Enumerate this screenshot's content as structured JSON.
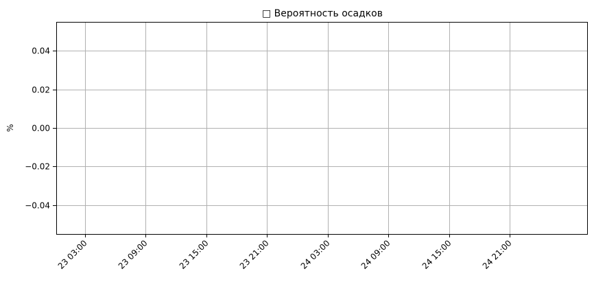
{
  "chart_data": {
    "type": "line",
    "title": "□ Вероятность осадков",
    "xlabel": "",
    "ylabel": "%",
    "x_ticks": [
      "23 03:00",
      "23 09:00",
      "23 15:00",
      "23 21:00",
      "24 03:00",
      "24 09:00",
      "24 15:00",
      "24 21:00"
    ],
    "y_ticks": [
      0.04,
      0.02,
      0.0,
      -0.02,
      -0.04
    ],
    "y_tick_labels": [
      "0.04",
      "0.02",
      "0.00",
      "−0.02",
      "−0.04"
    ],
    "ylim": [
      -0.055,
      0.055
    ],
    "series": [],
    "grid": true,
    "colors": {
      "grid": "#b0b0b0",
      "axes": "#000000",
      "background": "#ffffff"
    }
  }
}
